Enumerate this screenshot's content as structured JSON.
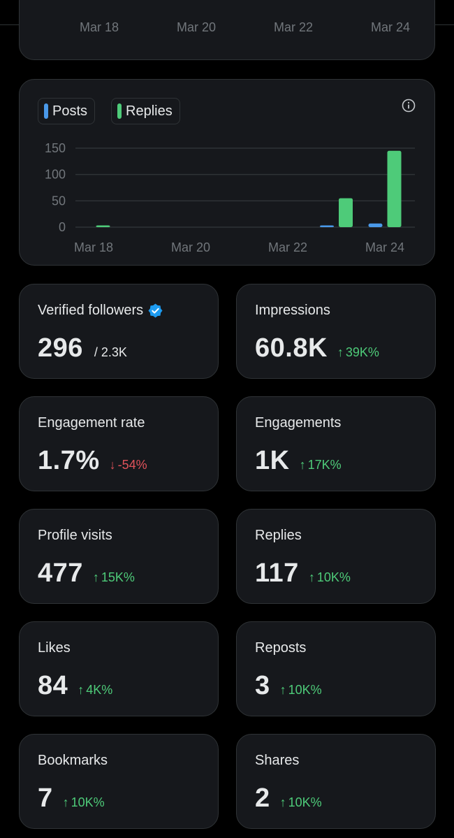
{
  "previous_chart": {
    "x_labels": [
      "Mar 18",
      "Mar 20",
      "Mar 22",
      "Mar 24"
    ]
  },
  "chart": {
    "legend": [
      {
        "label": "Posts",
        "color": "#4a99e9"
      },
      {
        "label": "Replies",
        "color": "#4ecb79"
      }
    ]
  },
  "chart_data": {
    "type": "bar",
    "title": "",
    "xlabel": "",
    "ylabel": "",
    "x_ticks": [
      "Mar 18",
      "Mar 20",
      "Mar 22",
      "Mar 24"
    ],
    "y_ticks": [
      0,
      50,
      100,
      150
    ],
    "ylim": [
      0,
      150
    ],
    "categories": [
      "Mar 18",
      "Mar 19",
      "Mar 20",
      "Mar 21",
      "Mar 22",
      "Mar 23",
      "Mar 24"
    ],
    "series": [
      {
        "name": "Posts",
        "color": "#4a99e9",
        "values": [
          0,
          0,
          0,
          0,
          0,
          3,
          7
        ]
      },
      {
        "name": "Replies",
        "color": "#4ecb79",
        "values": [
          1,
          0,
          0,
          0,
          0,
          55,
          145
        ]
      }
    ]
  },
  "metrics": [
    {
      "label": "Verified followers",
      "value": "296",
      "sub": "/ 2.3K",
      "verified": true
    },
    {
      "label": "Impressions",
      "value": "60.8K",
      "change": "39K%",
      "direction": "up"
    },
    {
      "label": "Engagement rate",
      "value": "1.7%",
      "change": "-54%",
      "direction": "down"
    },
    {
      "label": "Engagements",
      "value": "1K",
      "change": "17K%",
      "direction": "up"
    },
    {
      "label": "Profile visits",
      "value": "477",
      "change": "15K%",
      "direction": "up"
    },
    {
      "label": "Replies",
      "value": "117",
      "change": "10K%",
      "direction": "up"
    },
    {
      "label": "Likes",
      "value": "84",
      "change": "4K%",
      "direction": "up"
    },
    {
      "label": "Reposts",
      "value": "3",
      "change": "10K%",
      "direction": "up"
    },
    {
      "label": "Bookmarks",
      "value": "7",
      "change": "10K%",
      "direction": "up"
    },
    {
      "label": "Shares",
      "value": "2",
      "change": "10K%",
      "direction": "up"
    }
  ],
  "colors": {
    "background": "#000000",
    "card": "#16181c",
    "border": "#2f3336",
    "up": "#4ecb79",
    "down": "#e0525a",
    "verified": "#1d9bf0"
  }
}
